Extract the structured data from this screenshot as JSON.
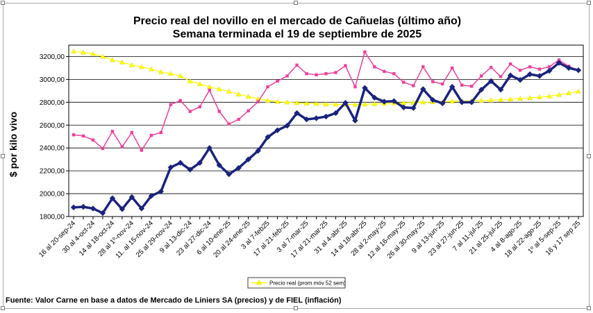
{
  "chart_data": {
    "type": "line",
    "title": "Precio real del novillo en el mercado de Cañuelas (último año)",
    "subtitle": "Semana terminada el 19 de septiembre de 2025",
    "ylabel": "$ por kilo vivo",
    "xlabel": "",
    "ylim": [
      1800,
      3300
    ],
    "yticks": [
      1800,
      2000,
      2200,
      2400,
      2600,
      2800,
      3000,
      3200
    ],
    "ytick_labels": [
      "1800,00",
      "2000,00",
      "2200,00",
      "2400,00",
      "2600,00",
      "2800,00",
      "3000,00",
      "3200,00"
    ],
    "grid": true,
    "legend_position": "bottom-center",
    "x_tick_labels": [
      {
        "label": "16 al 20-sep-24",
        "index": 0
      },
      {
        "label": "30 al 4-oct-24",
        "index": 2
      },
      {
        "label": "14 al 18-oct-24",
        "index": 4
      },
      {
        "label": "28 al 1º-nov-24",
        "index": 6
      },
      {
        "label": "11. al 15-nov-24",
        "index": 8
      },
      {
        "label": "25 al 29-nov-24",
        "index": 10
      },
      {
        "label": "9 al 13-dic-24",
        "index": 12
      },
      {
        "label": "23 al 27-dic-24",
        "index": 14
      },
      {
        "label": "6 al 10-ene-25",
        "index": 16
      },
      {
        "label": "20 al 24-ene-25",
        "index": 18
      },
      {
        "label": "3 al 7-feb25",
        "index": 20
      },
      {
        "label": "17 al 21-feb-25",
        "index": 22
      },
      {
        "label": "3 al 7-mar-25",
        "index": 24
      },
      {
        "label": "17 al 21-mar-25",
        "index": 26
      },
      {
        "label": "31 al 4-abr-25",
        "index": 28
      },
      {
        "label": "14 al 18-abr-25",
        "index": 30
      },
      {
        "label": "28 al 2-may-25",
        "index": 32
      },
      {
        "label": "12 al 16-may-25",
        "index": 34
      },
      {
        "label": "26 al 30-may-25",
        "index": 36
      },
      {
        "label": "9 al 13-jun-25",
        "index": 38
      },
      {
        "label": "23 al 27-jun-25",
        "index": 40
      },
      {
        "label": "7 al 11-jul-25",
        "index": 42
      },
      {
        "label": "21 al 25-jul-25",
        "index": 44
      },
      {
        "label": "4 al 8-ago-25",
        "index": 46
      },
      {
        "label": "18 al 22-ago-25",
        "index": 48
      },
      {
        "label": "1º al 5-sep-25",
        "index": 50
      },
      {
        "label": "16 y 17 sep 25",
        "index": 52
      }
    ],
    "series": [
      {
        "name": "",
        "color": "#1a237e",
        "marker": "diamond",
        "values": [
          1880,
          1885,
          1870,
          1830,
          1960,
          1865,
          1970,
          1870,
          1980,
          2020,
          2230,
          2270,
          2210,
          2270,
          2400,
          2250,
          2170,
          2225,
          2300,
          2375,
          2495,
          2555,
          2595,
          2705,
          2650,
          2660,
          2675,
          2705,
          2795,
          2640,
          2925,
          2840,
          2805,
          2810,
          2755,
          2750,
          2915,
          2820,
          2790,
          2935,
          2800,
          2800,
          2910,
          2985,
          2910,
          3035,
          2995,
          3045,
          3030,
          3075,
          3145,
          3100,
          3080
        ]
      },
      {
        "name": "",
        "color": "#ee3f9c",
        "marker": "square",
        "values": [
          2515,
          2505,
          2470,
          2395,
          2545,
          2410,
          2535,
          2380,
          2510,
          2535,
          2780,
          2815,
          2720,
          2760,
          2905,
          2720,
          2610,
          2650,
          2725,
          2805,
          2935,
          2985,
          3030,
          3125,
          3050,
          3040,
          3050,
          3060,
          3120,
          2935,
          3240,
          3110,
          3070,
          3050,
          2975,
          2945,
          3110,
          2980,
          2960,
          3100,
          2950,
          2940,
          3030,
          3105,
          3025,
          3135,
          3080,
          3110,
          3090,
          3110,
          3170,
          3115,
          3080
        ]
      },
      {
        "name": "Precio real (prom móv 52 sem)",
        "color": "#ffff00",
        "marker": "triangle",
        "values": [
          3245,
          3236,
          3223,
          3200,
          3170,
          3150,
          3125,
          3110,
          3090,
          3065,
          3050,
          3030,
          2985,
          2960,
          2935,
          2915,
          2895,
          2870,
          2850,
          2830,
          2815,
          2805,
          2800,
          2795,
          2790,
          2787,
          2784,
          2782,
          2780,
          2780,
          2782,
          2785,
          2788,
          2792,
          2795,
          2798,
          2800,
          2803,
          2805,
          2808,
          2810,
          2812,
          2815,
          2818,
          2822,
          2826,
          2832,
          2838,
          2845,
          2852,
          2865,
          2880,
          2895
        ]
      }
    ]
  },
  "legend": {
    "label": "Precio real (prom móv 52 sem)"
  },
  "source_note": "Fuente: Valor Carne en base a datos de Mercado de Liniers SA (precios) y de FIEL (inflación)"
}
